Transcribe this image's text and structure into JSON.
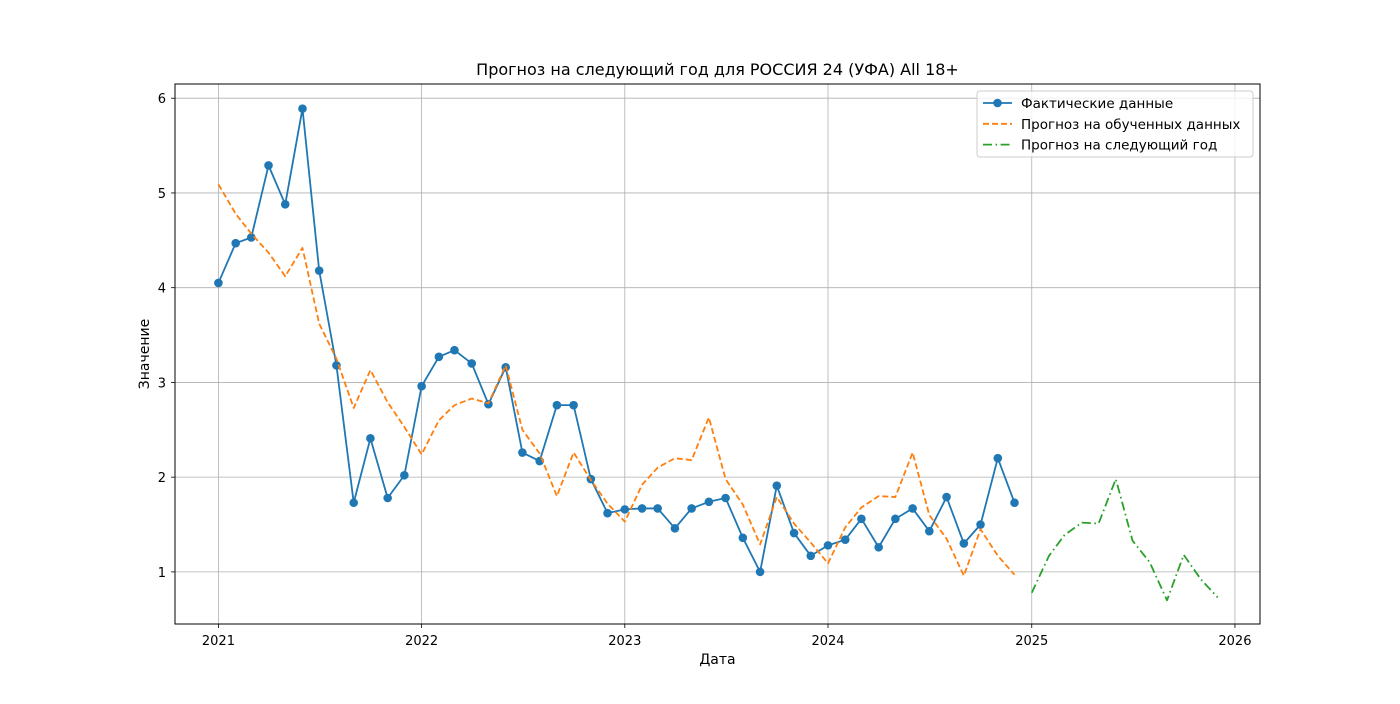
{
  "chart_data": {
    "type": "line",
    "title": "Прогноз на следующий год для РОССИЯ 24 (УФА) All 18+",
    "xlabel": "Дата",
    "ylabel": "Значение",
    "x_ticks": [
      "2021",
      "2022",
      "2023",
      "2024",
      "2025",
      "2026"
    ],
    "y_ticks": [
      "1",
      "2",
      "3",
      "4",
      "5",
      "6"
    ],
    "xlim": [
      "2020-10-15",
      "2026-02-15"
    ],
    "ylim": [
      0.45,
      6.15
    ],
    "grid": true,
    "legend_position": "top-right",
    "series": [
      {
        "name": "Фактические данные",
        "color": "#1f77b4",
        "linestyle": "solid",
        "marker": "circle",
        "x": [
          "2021-01-01",
          "2021-02-01",
          "2021-03-01",
          "2021-04-01",
          "2021-05-01",
          "2021-06-01",
          "2021-07-01",
          "2021-08-01",
          "2021-09-01",
          "2021-10-01",
          "2021-11-01",
          "2021-12-01",
          "2022-01-01",
          "2022-02-01",
          "2022-03-01",
          "2022-04-01",
          "2022-05-01",
          "2022-06-01",
          "2022-07-01",
          "2022-08-01",
          "2022-09-01",
          "2022-10-01",
          "2022-11-01",
          "2022-12-01",
          "2023-01-01",
          "2023-02-01",
          "2023-03-01",
          "2023-04-01",
          "2023-05-01",
          "2023-06-01",
          "2023-07-01",
          "2023-08-01",
          "2023-09-01",
          "2023-10-01",
          "2023-11-01",
          "2023-12-01",
          "2024-01-01",
          "2024-02-01",
          "2024-03-01",
          "2024-04-01",
          "2024-05-01",
          "2024-06-01",
          "2024-07-01",
          "2024-08-01",
          "2024-09-01",
          "2024-10-01",
          "2024-11-01",
          "2024-12-01"
        ],
        "values": [
          4.05,
          4.47,
          4.53,
          5.29,
          4.88,
          5.89,
          4.18,
          3.18,
          1.73,
          2.41,
          1.78,
          2.02,
          2.96,
          3.27,
          3.34,
          3.2,
          2.77,
          3.16,
          2.26,
          2.17,
          2.76,
          2.76,
          1.98,
          1.62,
          1.66,
          1.67,
          1.67,
          1.46,
          1.67,
          1.74,
          1.78,
          1.36,
          1.0,
          1.91,
          1.41,
          1.17,
          1.28,
          1.34,
          1.56,
          1.26,
          1.56,
          1.67,
          1.43,
          1.79,
          1.3,
          1.5,
          2.2,
          1.73
        ]
      },
      {
        "name": "Прогноз на обученных данных",
        "color": "#ff7f0e",
        "linestyle": "dashed",
        "x": [
          "2021-01-01",
          "2021-02-01",
          "2021-03-01",
          "2021-04-01",
          "2021-05-01",
          "2021-06-01",
          "2021-07-01",
          "2021-08-01",
          "2021-09-01",
          "2021-10-01",
          "2021-11-01",
          "2021-12-01",
          "2022-01-01",
          "2022-02-01",
          "2022-03-01",
          "2022-04-01",
          "2022-05-01",
          "2022-06-01",
          "2022-07-01",
          "2022-08-01",
          "2022-09-01",
          "2022-10-01",
          "2022-11-01",
          "2022-12-01",
          "2023-01-01",
          "2023-02-01",
          "2023-03-01",
          "2023-04-01",
          "2023-05-01",
          "2023-06-01",
          "2023-07-01",
          "2023-08-01",
          "2023-09-01",
          "2023-10-01",
          "2023-11-01",
          "2023-12-01",
          "2024-01-01",
          "2024-02-01",
          "2024-03-01",
          "2024-04-01",
          "2024-05-01",
          "2024-06-01",
          "2024-07-01",
          "2024-08-01",
          "2024-09-01",
          "2024-10-01",
          "2024-11-01",
          "2024-12-01"
        ],
        "values": [
          5.09,
          4.78,
          4.57,
          4.37,
          4.12,
          4.42,
          3.62,
          3.25,
          2.73,
          3.13,
          2.79,
          2.53,
          2.24,
          2.6,
          2.76,
          2.83,
          2.78,
          3.18,
          2.5,
          2.25,
          1.8,
          2.26,
          1.97,
          1.72,
          1.53,
          1.92,
          2.1,
          2.2,
          2.18,
          2.63,
          1.98,
          1.71,
          1.29,
          1.79,
          1.51,
          1.31,
          1.09,
          1.47,
          1.68,
          1.8,
          1.79,
          2.26,
          1.6,
          1.35,
          0.96,
          1.45,
          1.17,
          0.97
        ]
      },
      {
        "name": "Прогноз на следующий год",
        "color": "#2ca02c",
        "linestyle": "dashdot",
        "x": [
          "2025-01-01",
          "2025-02-01",
          "2025-03-01",
          "2025-04-01",
          "2025-05-01",
          "2025-06-01",
          "2025-07-01",
          "2025-08-01",
          "2025-09-01",
          "2025-10-01",
          "2025-11-01",
          "2025-12-01"
        ],
        "values": [
          0.78,
          1.17,
          1.39,
          1.52,
          1.51,
          1.98,
          1.33,
          1.1,
          0.7,
          1.18,
          0.92,
          0.73
        ]
      }
    ]
  }
}
